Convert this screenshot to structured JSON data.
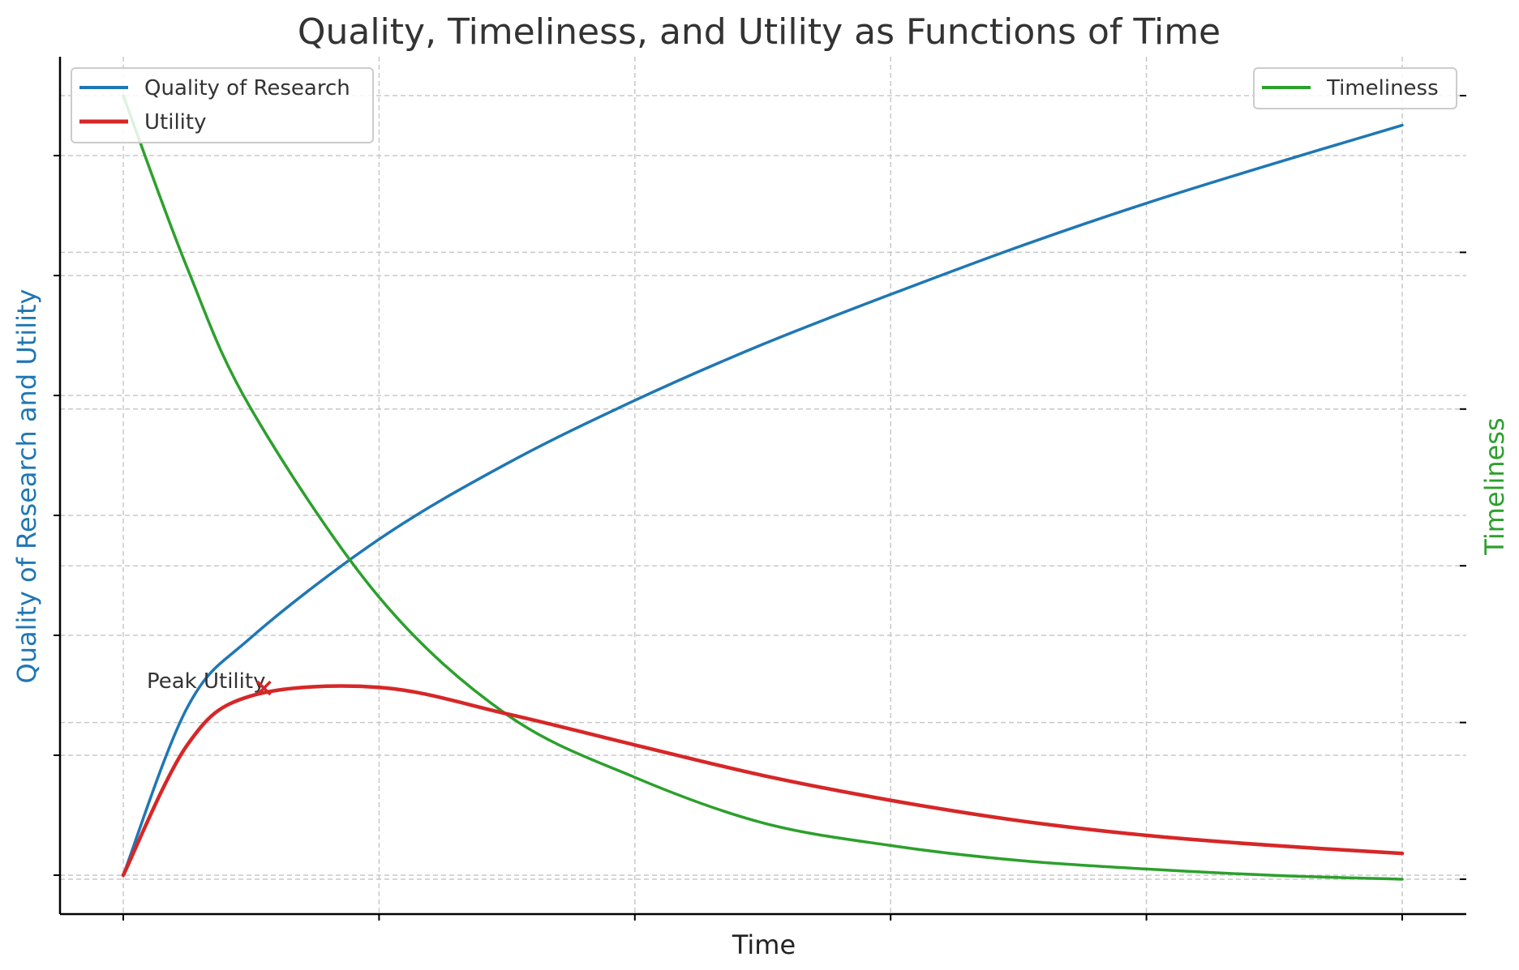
{
  "chart_data": {
    "type": "line",
    "title": "Quality, Timeliness, and Utility as Functions of Time",
    "xlabel": "Time",
    "ylabel_left": "Quality of Research and Utility",
    "ylabel_right": "Timeliness",
    "tick_labels_visible": false,
    "grid": true,
    "x": [
      0,
      0.05,
      0.1,
      0.2,
      0.3,
      0.4,
      0.5,
      0.6,
      0.7,
      0.8,
      0.9,
      1.0
    ],
    "series": [
      {
        "name": "Quality of Research",
        "axis": "left",
        "color": "#1f77b4",
        "values": [
          0,
          0.215,
          0.305,
          0.431,
          0.528,
          0.609,
          0.681,
          0.745,
          0.806,
          0.862,
          0.913,
          0.962
        ]
      },
      {
        "name": "Utility",
        "axis": "left",
        "color": "#d62728",
        "values": [
          0,
          0.167,
          0.23,
          0.241,
          0.207,
          0.167,
          0.128,
          0.096,
          0.07,
          0.051,
          0.038,
          0.028
        ]
      },
      {
        "name": "Timeliness",
        "axis": "right",
        "color": "#2ca02c",
        "values": [
          1,
          0.78,
          0.6,
          0.36,
          0.21,
          0.13,
          0.072,
          0.043,
          0.024,
          0.013,
          0.005,
          0.0
        ]
      }
    ],
    "left_ylim": [
      -0.05,
      1.05
    ],
    "right_ylim": [
      -0.05,
      1.05
    ],
    "annotations": [
      {
        "text": "Peak Utility",
        "x": 0.11,
        "y": 0.24,
        "marker": "x",
        "color": "#d62728"
      }
    ],
    "legend_left": {
      "placement": "upper-left",
      "entries": [
        "Quality of Research",
        "Utility"
      ]
    },
    "legend_right": {
      "placement": "upper-right",
      "entries": [
        "Timeliness"
      ]
    }
  }
}
